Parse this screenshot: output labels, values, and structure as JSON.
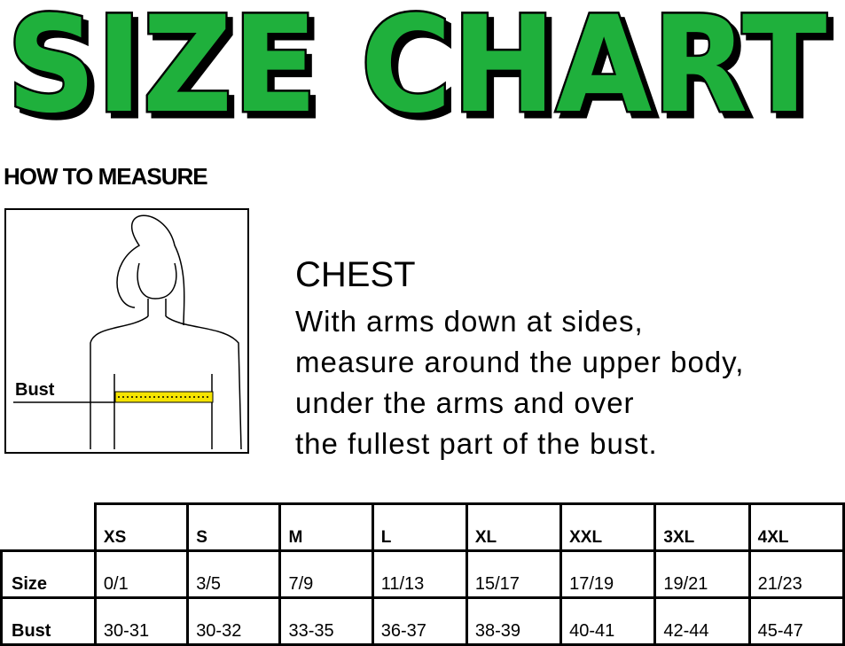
{
  "title": "SIZE CHART",
  "colors": {
    "title_fill": "#1fb03c",
    "title_outline": "#000000",
    "tape": "#f5e400"
  },
  "how_to_measure": "HOW TO MEASURE",
  "figure": {
    "bust_label": "Bust"
  },
  "chest": {
    "title": "CHEST",
    "lines": [
      "With arms down at sides,",
      "measure around the upper body,",
      "under the arms and over",
      "the fullest part of the bust."
    ]
  },
  "table": {
    "columns": [
      "XS",
      "S",
      "M",
      "L",
      "XL",
      "XXL",
      "3XL",
      "4XL"
    ],
    "rows": [
      {
        "label": "Size",
        "values": [
          "0/1",
          "3/5",
          "7/9",
          "11/13",
          "15/17",
          "17/19",
          "19/21",
          "21/23"
        ]
      },
      {
        "label": "Bust",
        "values": [
          "30-31",
          "30-32",
          "33-35",
          "36-37",
          "38-39",
          "40-41",
          "42-44",
          "45-47"
        ]
      }
    ]
  }
}
